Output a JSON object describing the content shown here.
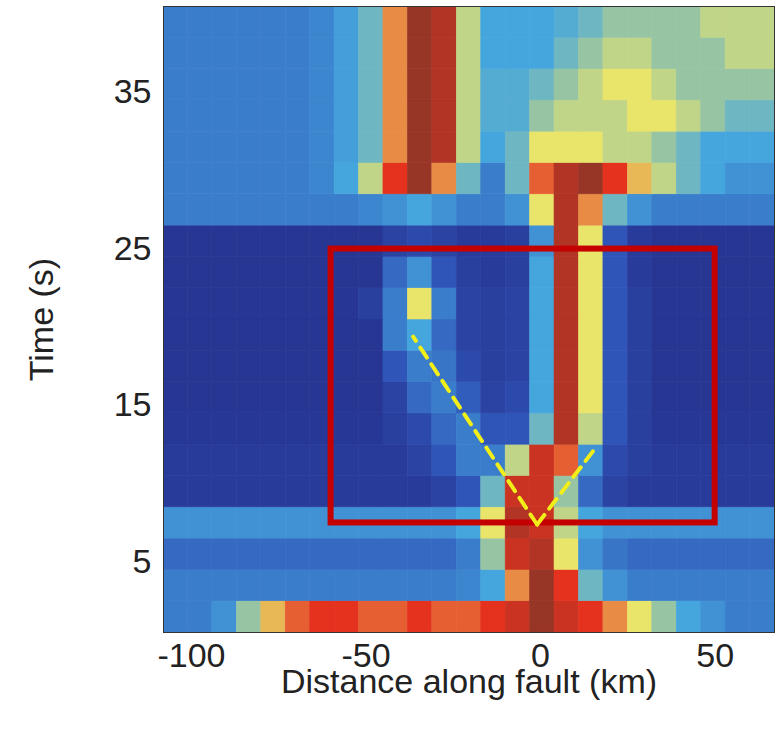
{
  "chart_data": {
    "type": "heatmap",
    "x_label": "Distance along fault (km)",
    "y_label": "Time (s)",
    "xlim": [
      -108,
      67
    ],
    "ylim": [
      0.5,
      40.5
    ],
    "xticks": [
      -100,
      -50,
      0,
      50
    ],
    "yticks": [
      5,
      15,
      25,
      35
    ],
    "cells": {
      "x": [
        -104.5,
        -97.5,
        -90.5,
        -83.5,
        -76.5,
        -69.5,
        -62.5,
        -55.5,
        -48.5,
        -41.5,
        -34.5,
        -27.5,
        -20.5,
        -13.5,
        -6.5,
        0.5,
        7.5,
        14.5,
        21.5,
        28.5,
        35.5,
        42.5,
        49.5,
        56.5,
        63.5
      ],
      "y": [
        1.5,
        3.5,
        5.5,
        7.5,
        9.5,
        11.5,
        13.5,
        15.5,
        17.5,
        19.5,
        21.5,
        23.5,
        25.5,
        27.5,
        29.5,
        31.5,
        33.5,
        35.5,
        37.5,
        39.5
      ],
      "color_domain": [
        0,
        1
      ],
      "values": [
        [
          0.3,
          0.3,
          0.35,
          0.5,
          0.65,
          0.75,
          0.8,
          0.8,
          0.75,
          0.75,
          0.8,
          0.75,
          0.75,
          0.8,
          0.85,
          0.95,
          0.85,
          0.8,
          0.7,
          0.6,
          0.5,
          0.4,
          0.35,
          0.3,
          0.3
        ],
        [
          0.3,
          0.3,
          0.3,
          0.3,
          0.3,
          0.3,
          0.3,
          0.3,
          0.3,
          0.3,
          0.3,
          0.3,
          0.32,
          0.4,
          0.7,
          0.95,
          0.8,
          0.45,
          0.35,
          0.3,
          0.3,
          0.3,
          0.3,
          0.3,
          0.3
        ],
        [
          0.25,
          0.25,
          0.25,
          0.25,
          0.25,
          0.25,
          0.25,
          0.25,
          0.25,
          0.25,
          0.25,
          0.25,
          0.3,
          0.5,
          0.85,
          0.9,
          0.6,
          0.35,
          0.28,
          0.25,
          0.25,
          0.25,
          0.25,
          0.25,
          0.25
        ],
        [
          0.35,
          0.35,
          0.35,
          0.35,
          0.35,
          0.35,
          0.35,
          0.35,
          0.35,
          0.35,
          0.35,
          0.35,
          0.4,
          0.6,
          0.9,
          0.85,
          0.55,
          0.4,
          0.35,
          0.35,
          0.35,
          0.35,
          0.35,
          0.35,
          0.35
        ],
        [
          0.08,
          0.08,
          0.08,
          0.08,
          0.08,
          0.08,
          0.08,
          0.08,
          0.08,
          0.08,
          0.08,
          0.12,
          0.2,
          0.45,
          0.85,
          0.85,
          0.5,
          0.25,
          0.12,
          0.08,
          0.08,
          0.08,
          0.08,
          0.08,
          0.08
        ],
        [
          0.08,
          0.08,
          0.08,
          0.08,
          0.08,
          0.08,
          0.08,
          0.08,
          0.08,
          0.08,
          0.12,
          0.2,
          0.3,
          0.3,
          0.55,
          0.85,
          0.75,
          0.35,
          0.15,
          0.1,
          0.08,
          0.08,
          0.08,
          0.08,
          0.08
        ],
        [
          0.06,
          0.06,
          0.06,
          0.06,
          0.06,
          0.06,
          0.06,
          0.06,
          0.06,
          0.1,
          0.15,
          0.25,
          0.3,
          0.2,
          0.2,
          0.45,
          0.9,
          0.55,
          0.2,
          0.1,
          0.06,
          0.06,
          0.06,
          0.06,
          0.06
        ],
        [
          0.05,
          0.05,
          0.05,
          0.05,
          0.05,
          0.05,
          0.05,
          0.05,
          0.05,
          0.12,
          0.25,
          0.3,
          0.22,
          0.12,
          0.15,
          0.4,
          0.9,
          0.6,
          0.2,
          0.1,
          0.05,
          0.05,
          0.05,
          0.05,
          0.05
        ],
        [
          0.05,
          0.05,
          0.05,
          0.05,
          0.05,
          0.05,
          0.05,
          0.05,
          0.05,
          0.2,
          0.3,
          0.28,
          0.15,
          0.1,
          0.12,
          0.4,
          0.9,
          0.6,
          0.2,
          0.1,
          0.05,
          0.05,
          0.05,
          0.05,
          0.05
        ],
        [
          0.05,
          0.05,
          0.05,
          0.05,
          0.05,
          0.05,
          0.05,
          0.05,
          0.05,
          0.3,
          0.4,
          0.25,
          0.12,
          0.1,
          0.12,
          0.4,
          0.9,
          0.6,
          0.2,
          0.1,
          0.05,
          0.05,
          0.05,
          0.05,
          0.05
        ],
        [
          0.05,
          0.05,
          0.05,
          0.05,
          0.05,
          0.05,
          0.05,
          0.05,
          0.1,
          0.3,
          0.6,
          0.3,
          0.12,
          0.1,
          0.12,
          0.4,
          0.9,
          0.6,
          0.2,
          0.1,
          0.05,
          0.05,
          0.05,
          0.05,
          0.05
        ],
        [
          0.05,
          0.05,
          0.05,
          0.05,
          0.05,
          0.05,
          0.05,
          0.05,
          0.05,
          0.25,
          0.35,
          0.2,
          0.1,
          0.08,
          0.1,
          0.4,
          0.9,
          0.6,
          0.2,
          0.08,
          0.05,
          0.05,
          0.05,
          0.05,
          0.05
        ],
        [
          0.05,
          0.05,
          0.05,
          0.05,
          0.05,
          0.05,
          0.05,
          0.05,
          0.05,
          0.12,
          0.15,
          0.12,
          0.08,
          0.08,
          0.1,
          0.35,
          0.9,
          0.6,
          0.2,
          0.08,
          0.05,
          0.05,
          0.05,
          0.05,
          0.05
        ],
        [
          0.3,
          0.3,
          0.3,
          0.3,
          0.3,
          0.3,
          0.3,
          0.3,
          0.32,
          0.35,
          0.4,
          0.35,
          0.3,
          0.3,
          0.35,
          0.6,
          0.9,
          0.7,
          0.45,
          0.35,
          0.3,
          0.3,
          0.3,
          0.3,
          0.3
        ],
        [
          0.3,
          0.3,
          0.3,
          0.3,
          0.3,
          0.3,
          0.32,
          0.4,
          0.55,
          0.8,
          0.95,
          0.7,
          0.45,
          0.3,
          0.45,
          0.75,
          0.9,
          0.95,
          0.8,
          0.65,
          0.55,
          0.45,
          0.4,
          0.35,
          0.35
        ],
        [
          0.3,
          0.3,
          0.3,
          0.3,
          0.3,
          0.3,
          0.32,
          0.38,
          0.45,
          0.7,
          0.95,
          0.9,
          0.55,
          0.4,
          0.45,
          0.6,
          0.6,
          0.6,
          0.55,
          0.55,
          0.5,
          0.45,
          0.4,
          0.4,
          0.4
        ],
        [
          0.3,
          0.3,
          0.3,
          0.3,
          0.3,
          0.3,
          0.32,
          0.38,
          0.45,
          0.7,
          0.95,
          0.9,
          0.55,
          0.42,
          0.42,
          0.5,
          0.55,
          0.55,
          0.55,
          0.6,
          0.6,
          0.55,
          0.5,
          0.45,
          0.45
        ],
        [
          0.3,
          0.3,
          0.3,
          0.3,
          0.3,
          0.3,
          0.32,
          0.38,
          0.45,
          0.7,
          0.95,
          0.9,
          0.55,
          0.42,
          0.42,
          0.45,
          0.5,
          0.55,
          0.6,
          0.6,
          0.55,
          0.5,
          0.5,
          0.5,
          0.5
        ],
        [
          0.3,
          0.3,
          0.3,
          0.3,
          0.3,
          0.3,
          0.32,
          0.38,
          0.45,
          0.7,
          0.95,
          0.9,
          0.55,
          0.4,
          0.4,
          0.4,
          0.45,
          0.5,
          0.55,
          0.55,
          0.5,
          0.5,
          0.5,
          0.55,
          0.55
        ],
        [
          0.3,
          0.3,
          0.3,
          0.3,
          0.3,
          0.3,
          0.32,
          0.38,
          0.45,
          0.7,
          0.95,
          0.9,
          0.55,
          0.4,
          0.4,
          0.4,
          0.42,
          0.45,
          0.5,
          0.5,
          0.5,
          0.5,
          0.55,
          0.55,
          0.55
        ]
      ]
    },
    "annotations": {
      "box": {
        "x": [
          -60,
          50
        ],
        "y": [
          7.5,
          25
        ],
        "color": "#c40000"
      },
      "dashed_lines": [
        {
          "x": [
            -1,
            -36.5
          ],
          "y": [
            7.4,
            19.4
          ],
          "color": "#f2ee1a"
        },
        {
          "x": [
            -1,
            15.4
          ],
          "y": [
            7.4,
            12.2
          ],
          "color": "#f2ee1a"
        }
      ]
    }
  }
}
